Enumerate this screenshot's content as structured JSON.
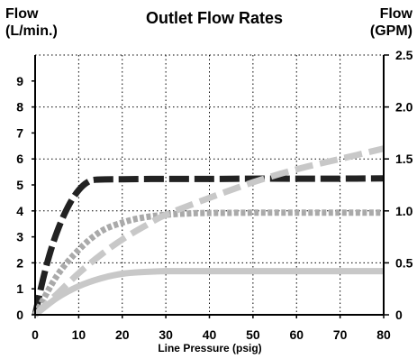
{
  "chart_data": {
    "type": "line",
    "title": "Outlet Flow Rates",
    "ylabel_left": [
      "Flow",
      "(L/min.)"
    ],
    "ylabel_right": [
      "Flow",
      "(GPM)"
    ],
    "xlabel": "Line Pressure (psig)",
    "xlim": [
      0,
      80
    ],
    "ylim_left": [
      0,
      10
    ],
    "ylim_right": [
      0,
      2.5
    ],
    "x_ticks": [
      "0",
      "10",
      "20",
      "30",
      "40",
      "50",
      "60",
      "70",
      "80"
    ],
    "y_ticks_left": [
      "0",
      "1",
      "2",
      "3",
      "4",
      "5",
      "6",
      "7",
      "8",
      "9"
    ],
    "y_ticks_right": [
      "0",
      "0.5",
      "1.0",
      "1.5",
      "2.0",
      "2.5"
    ],
    "grid": "dotted",
    "legend": "none",
    "series": [
      {
        "color": "#222222",
        "style": "long-dash",
        "x": [
          0,
          2,
          4,
          6,
          8,
          10,
          12,
          14,
          20,
          30,
          40,
          50,
          60,
          70,
          80
        ],
        "y": [
          0,
          1.5,
          2.7,
          3.6,
          4.3,
          4.8,
          5.1,
          5.2,
          5.22,
          5.23,
          5.23,
          5.24,
          5.24,
          5.24,
          5.25
        ]
      },
      {
        "color": "#aaaaaa",
        "style": "dense-dash",
        "x": [
          0,
          5,
          10,
          15,
          20,
          25,
          30,
          35,
          40,
          50,
          60,
          70,
          80
        ],
        "y": [
          0,
          1.5,
          2.5,
          3.2,
          3.55,
          3.75,
          3.85,
          3.9,
          3.92,
          3.93,
          3.93,
          3.93,
          3.93
        ]
      },
      {
        "color": "#c8c8c8",
        "style": "dash",
        "x": [
          0,
          5,
          10,
          15,
          20,
          25,
          30,
          40,
          50,
          60,
          70,
          80
        ],
        "y": [
          0,
          0.8,
          1.6,
          2.3,
          2.9,
          3.4,
          3.85,
          4.5,
          5.1,
          5.6,
          6.0,
          6.4
        ]
      },
      {
        "color": "#c8c8c8",
        "style": "solid",
        "x": [
          0,
          5,
          10,
          15,
          20,
          25,
          30,
          40,
          50,
          60,
          70,
          80
        ],
        "y": [
          0,
          0.65,
          1.1,
          1.4,
          1.58,
          1.65,
          1.68,
          1.68,
          1.68,
          1.68,
          1.68,
          1.68
        ]
      }
    ]
  }
}
